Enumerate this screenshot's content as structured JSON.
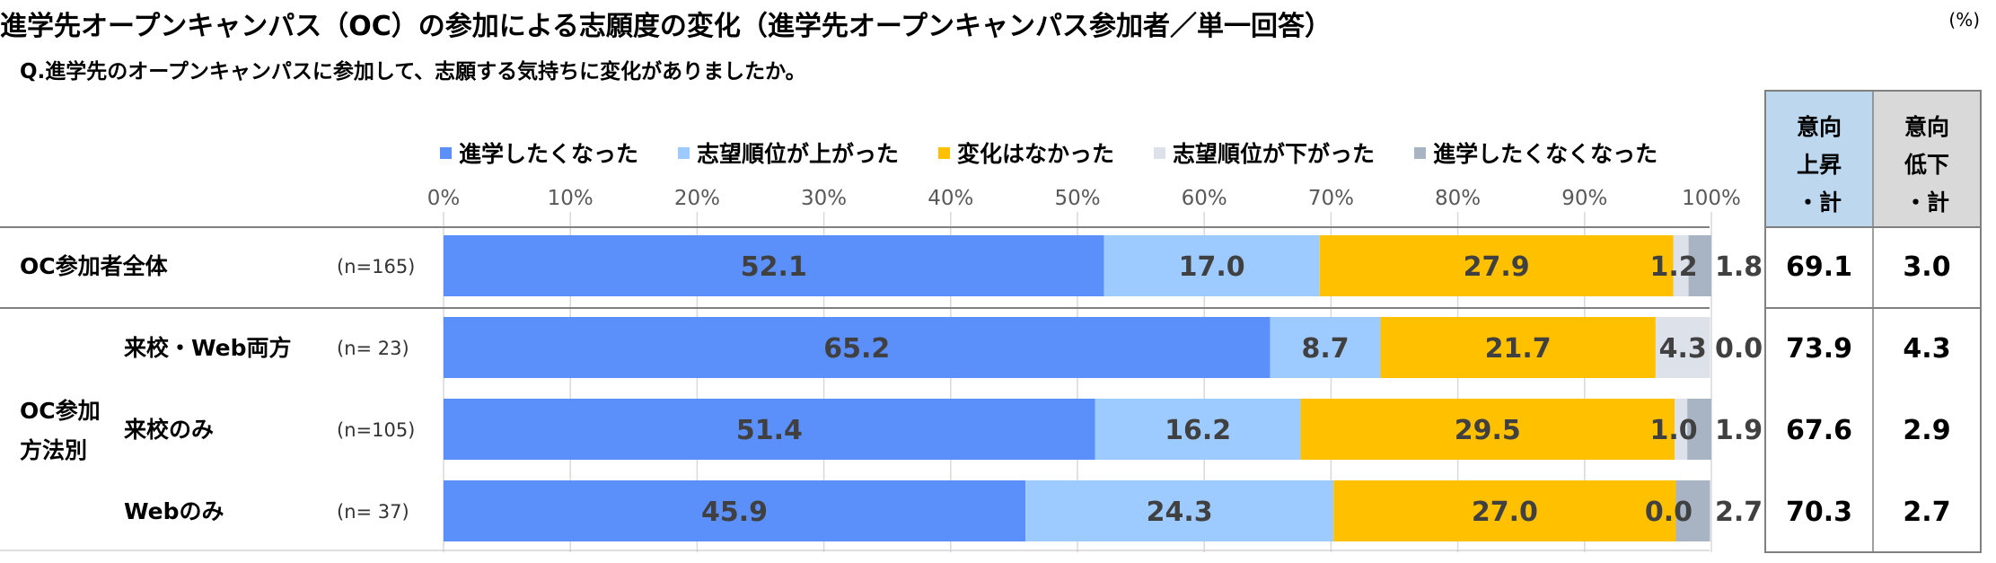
{
  "title": "進学先オープンキャンパス（OC）の参加による志願度の変化（進学先オープンキャンパス参加者／単一回答）",
  "unit_label": "(%)",
  "question": "Q.進学先のオープンキャンパスに参加して、志願する気持ちに変化がありましたか。",
  "group_label": "OC参加方法別",
  "group_label_lines": [
    "OC参加",
    "方法別"
  ],
  "summary_headers": [
    {
      "lines": [
        "意向",
        "上昇",
        "・計"
      ]
    },
    {
      "lines": [
        "意向",
        "低下",
        "・計"
      ]
    }
  ],
  "colors": {
    "series": [
      "#5B8FF9",
      "#9ECBFF",
      "#FFC000",
      "#DCE1EA",
      "#A8B4C4"
    ],
    "header_fill_1": "#BDD7EE",
    "header_fill_2": "#D9D9D9",
    "grid": "#D9D9D9",
    "border": "#808080"
  },
  "chart_data": {
    "type": "bar",
    "orientation": "horizontal",
    "stacked": true,
    "xlim": [
      0,
      100
    ],
    "x_ticks": [
      "0%",
      "10%",
      "20%",
      "30%",
      "40%",
      "50%",
      "60%",
      "70%",
      "80%",
      "90%",
      "100%"
    ],
    "legend_position": "top",
    "categories": [
      "OC参加者全体",
      "来校・Web両方",
      "来校のみ",
      "Webのみ"
    ],
    "n_labels": [
      "(n=165)",
      "(n=  23)",
      "(n=105)",
      "(n=  37)"
    ],
    "series": [
      {
        "name": "進学したくなった",
        "values": [
          52.1,
          65.2,
          51.4,
          45.9
        ],
        "labels": [
          "52.1",
          "65.2",
          "51.4",
          "45.9"
        ]
      },
      {
        "name": "志望順位が上がった",
        "values": [
          17.0,
          8.7,
          16.2,
          24.3
        ],
        "labels": [
          "17.0",
          "8.7",
          "16.2",
          "24.3"
        ]
      },
      {
        "name": "変化はなかった",
        "values": [
          27.9,
          21.7,
          29.5,
          27.0
        ],
        "labels": [
          "27.9",
          "21.7",
          "29.5",
          "27.0"
        ]
      },
      {
        "name": "志望順位が下がった",
        "values": [
          1.2,
          4.3,
          1.0,
          0.0
        ],
        "labels": [
          "1.2",
          "4.3",
          "1.0",
          "0.0"
        ]
      },
      {
        "name": "進学したくなくなった",
        "values": [
          1.8,
          0.0,
          1.9,
          2.7
        ],
        "labels": [
          "1.8",
          "0.0",
          "1.9",
          "2.7"
        ]
      }
    ],
    "summary": {
      "up": [
        "69.1",
        "73.9",
        "67.6",
        "70.3"
      ],
      "down": [
        "3.0",
        "4.3",
        "2.9",
        "2.7"
      ]
    }
  }
}
